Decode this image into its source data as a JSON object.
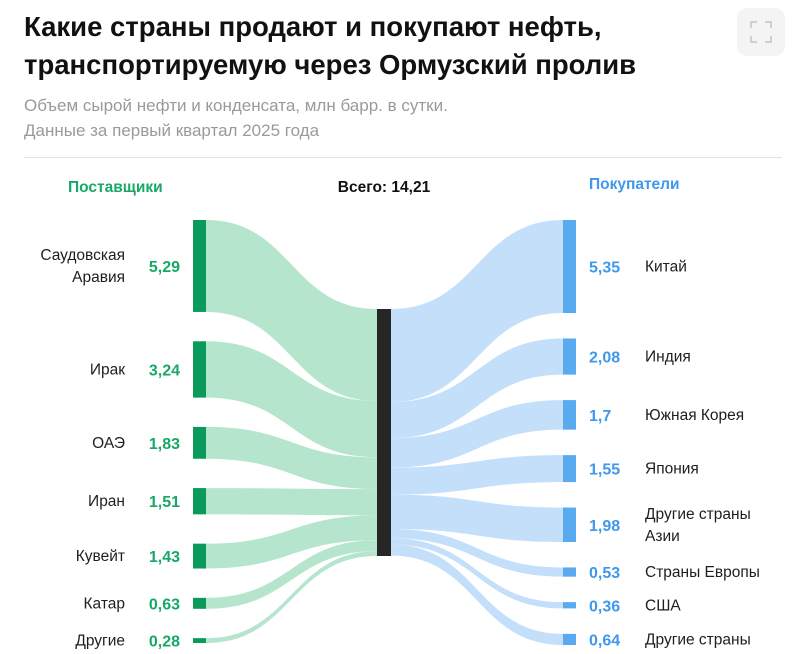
{
  "title_lines": [
    "Какие страны продают и покупают нефть,",
    "транспортируемую через Ормузский пролив"
  ],
  "subtitle_lines": [
    "Объем сырой нефти и конденсата, млн барр. в сутки.",
    "Данные за первый квартал 2025 года"
  ],
  "expand_icon": "fullscreen-icon",
  "colors": {
    "supplier_bar": "#0a9a5c",
    "supplier_flow": "#b5e6cd",
    "buyer_bar": "#5aaaf0",
    "buyer_flow": "#c4dffa",
    "hub": "#262626"
  },
  "chart_data": {
    "type": "sankey",
    "total_label": "Всего: 14,21",
    "total": 14.21,
    "suppliers_header": "Поставщики",
    "buyers_header": "Покупатели",
    "suppliers": [
      {
        "label_lines": [
          "Саудовская",
          "Аравия"
        ],
        "value": 5.29,
        "value_label": "5,29"
      },
      {
        "label_lines": [
          "Ирак"
        ],
        "value": 3.24,
        "value_label": "3,24"
      },
      {
        "label_lines": [
          "ОАЭ"
        ],
        "value": 1.83,
        "value_label": "1,83"
      },
      {
        "label_lines": [
          "Иран"
        ],
        "value": 1.51,
        "value_label": "1,51"
      },
      {
        "label_lines": [
          "Кувейт"
        ],
        "value": 1.43,
        "value_label": "1,43"
      },
      {
        "label_lines": [
          "Катар"
        ],
        "value": 0.63,
        "value_label": "0,63"
      },
      {
        "label_lines": [
          "Другие"
        ],
        "value": 0.28,
        "value_label": "0,28"
      }
    ],
    "buyers": [
      {
        "label_lines": [
          "Китай"
        ],
        "value": 5.35,
        "value_label": "5,35"
      },
      {
        "label_lines": [
          "Индия"
        ],
        "value": 2.08,
        "value_label": "2,08"
      },
      {
        "label_lines": [
          "Южная Корея"
        ],
        "value": 1.7,
        "value_label": "1,7"
      },
      {
        "label_lines": [
          "Япония"
        ],
        "value": 1.55,
        "value_label": "1,55"
      },
      {
        "label_lines": [
          "Другие страны",
          "Азии"
        ],
        "value": 1.98,
        "value_label": "1,98"
      },
      {
        "label_lines": [
          "Страны Европы"
        ],
        "value": 0.53,
        "value_label": "0,53"
      },
      {
        "label_lines": [
          "США"
        ],
        "value": 0.36,
        "value_label": "0,36"
      },
      {
        "label_lines": [
          "Другие страны"
        ],
        "value": 0.64,
        "value_label": "0,64"
      }
    ]
  }
}
